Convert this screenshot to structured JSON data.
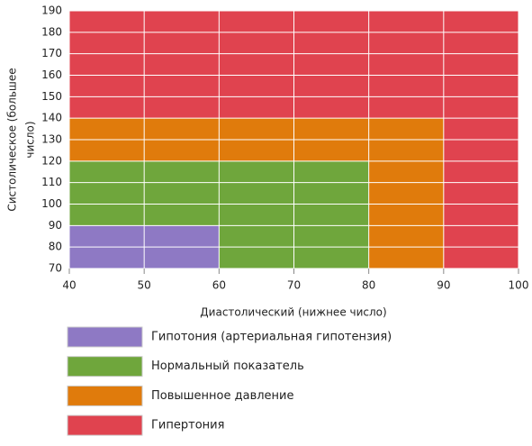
{
  "chart_data": {
    "type": "region",
    "x_label": "Диастолический (нижнее число)",
    "y_label": [
      "Систолическое (большее",
      "число)"
    ],
    "xlim": [
      40,
      100
    ],
    "xticks": [
      40,
      50,
      60,
      70,
      80,
      90,
      100
    ],
    "ylim": [
      70,
      190
    ],
    "yticks": [
      70,
      80,
      90,
      100,
      110,
      120,
      130,
      140,
      150,
      160,
      170,
      180,
      190
    ],
    "grid": true,
    "series": [
      {
        "name": "Гипотония (артериальная гипотензия)",
        "color": "#8e79c4",
        "regions": [
          [
            40,
            60,
            70,
            90
          ]
        ]
      },
      {
        "name": "Нормальный показатель",
        "color": "#6fa63c",
        "regions": [
          [
            40,
            80,
            90,
            120
          ],
          [
            60,
            80,
            70,
            90
          ]
        ]
      },
      {
        "name": "Повышенное давление",
        "color": "#e07b0c",
        "regions": [
          [
            40,
            90,
            120,
            140
          ],
          [
            80,
            90,
            70,
            120
          ]
        ]
      },
      {
        "name": "Гипертония",
        "color": "#e0434f",
        "regions": [
          [
            40,
            100,
            140,
            190
          ],
          [
            90,
            100,
            70,
            140
          ]
        ]
      }
    ]
  }
}
